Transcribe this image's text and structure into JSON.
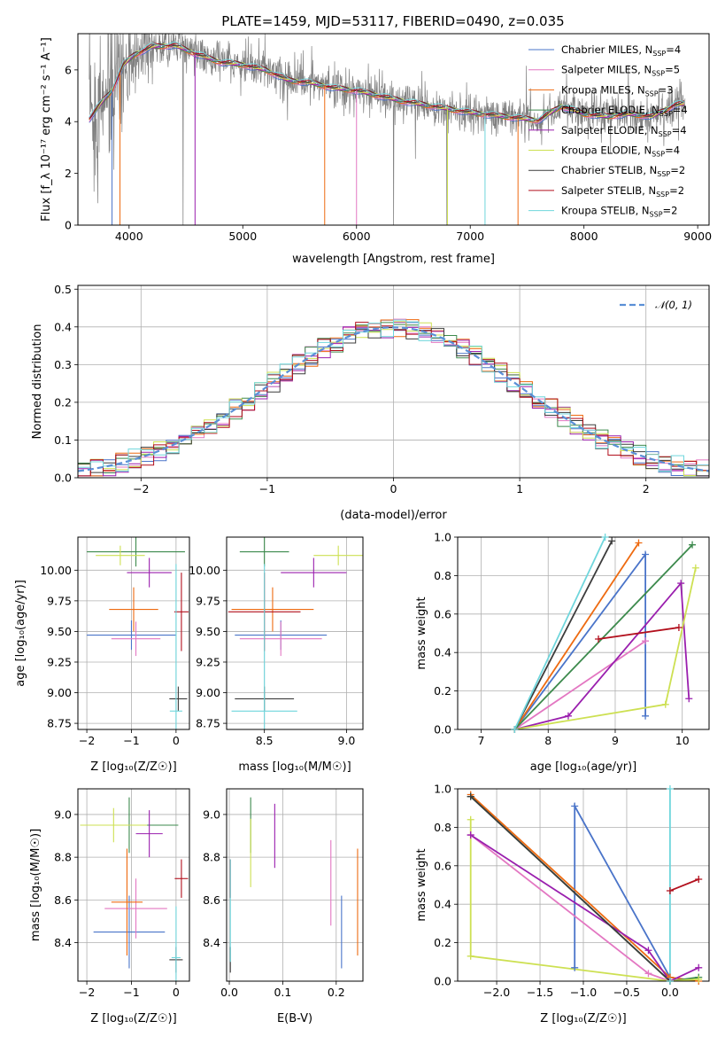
{
  "figure": {
    "title": "PLATE=1459, MJD=53117, FIBERID=0490, z=0.035",
    "series": [
      {
        "name": "Chabrier MILES",
        "nssp": 4,
        "color": "#4a74c9"
      },
      {
        "name": "Salpeter MILES",
        "nssp": 5,
        "color": "#e377c2"
      },
      {
        "name": "Kroupa MILES",
        "nssp": 3,
        "color": "#ee6a10"
      },
      {
        "name": "Chabrier ELODIE",
        "nssp": 4,
        "color": "#3d8a4d"
      },
      {
        "name": "Salpeter ELODIE",
        "nssp": 4,
        "color": "#9a1fae"
      },
      {
        "name": "Kroupa ELODIE",
        "nssp": 4,
        "color": "#cde052"
      },
      {
        "name": "Chabrier STELIB",
        "nssp": 2,
        "color": "#3c3c3c"
      },
      {
        "name": "Salpeter STELIB",
        "nssp": 2,
        "color": "#b20f1c"
      },
      {
        "name": "Kroupa STELIB",
        "nssp": 2,
        "color": "#6fd6dc"
      }
    ],
    "data_color": "#808080"
  },
  "chart_data": [
    {
      "id": "spectrum",
      "type": "line",
      "xlabel": "wavelength [Angstrom, rest frame]",
      "ylabel": "Flux [f_λ 10⁻¹⁷ erg cm⁻² s⁻¹ A⁻¹]",
      "xlim": [
        3550,
        9100
      ],
      "ylim": [
        0,
        7.4
      ],
      "xticks": [
        4000,
        5000,
        6000,
        7000,
        8000,
        9000
      ],
      "yticks": [
        0,
        2,
        4,
        6
      ],
      "grid": false,
      "legend": "top-right",
      "continuum": [
        [
          3650,
          4.1
        ],
        [
          3750,
          4.7
        ],
        [
          3850,
          5.2
        ],
        [
          3950,
          6.2
        ],
        [
          4050,
          6.6
        ],
        [
          4200,
          6.9
        ],
        [
          4400,
          6.95
        ],
        [
          4600,
          6.6
        ],
        [
          4800,
          6.3
        ],
        [
          5000,
          6.2
        ],
        [
          5200,
          6.0
        ],
        [
          5400,
          5.6
        ],
        [
          5600,
          5.5
        ],
        [
          5800,
          5.3
        ],
        [
          6000,
          5.2
        ],
        [
          6200,
          5.0
        ],
        [
          6400,
          4.8
        ],
        [
          6600,
          4.65
        ],
        [
          6800,
          4.5
        ],
        [
          7000,
          4.35
        ],
        [
          7200,
          4.25
        ],
        [
          7400,
          4.15
        ],
        [
          7600,
          4.05
        ],
        [
          7800,
          4.6
        ],
        [
          8000,
          4.3
        ],
        [
          8200,
          4.2
        ],
        [
          8400,
          4.3
        ],
        [
          8600,
          4.2
        ],
        [
          8800,
          4.65
        ],
        [
          8900,
          4.7
        ]
      ]
    },
    {
      "id": "residuals",
      "type": "line",
      "xlabel": "(data-model)/error",
      "ylabel": "Normed distribution",
      "xlim": [
        -2.5,
        2.5
      ],
      "ylim": [
        0,
        0.51
      ],
      "xticks": [
        -2,
        -1,
        0,
        1,
        2
      ],
      "yticks": [
        0.0,
        0.1,
        0.2,
        0.3,
        0.4,
        0.5
      ],
      "grid": true,
      "legend": "top-right",
      "reference_label": "𝒩(0, 1)",
      "reference_color": "#5a8fd6"
    },
    {
      "id": "age_vs_Z",
      "type": "scatter",
      "xlabel": "Z [log₁₀(Z/Z☉)]",
      "ylabel": "age  [log₁₀(age/yr)]",
      "xlim": [
        -2.2,
        0.3
      ],
      "ylim": [
        8.7,
        10.27
      ],
      "xticks": [
        -2,
        -1,
        0
      ],
      "yticks": [
        8.75,
        9.0,
        9.25,
        9.5,
        9.75,
        10.0
      ],
      "grid": true,
      "points": [
        {
          "s": 0,
          "x": -1.0,
          "y": 9.47,
          "xe": 1.0,
          "ye": 0.12
        },
        {
          "s": 1,
          "x": -0.9,
          "y": 9.44,
          "xe": 0.55,
          "ye": 0.14
        },
        {
          "s": 2,
          "x": -0.95,
          "y": 9.68,
          "xe": 0.55,
          "ye": 0.18
        },
        {
          "s": 3,
          "x": -0.9,
          "y": 10.15,
          "xe": 1.1,
          "ye": 0.12
        },
        {
          "s": 4,
          "x": -0.6,
          "y": 9.98,
          "xe": 0.5,
          "ye": 0.12
        },
        {
          "s": 5,
          "x": -1.25,
          "y": 10.12,
          "xe": 0.55,
          "ye": 0.08
        },
        {
          "s": 6,
          "x": 0.05,
          "y": 8.95,
          "xe": 0.2,
          "ye": 0.1
        },
        {
          "s": 7,
          "x": 0.12,
          "y": 9.66,
          "xe": 0.16,
          "ye": 0.32
        },
        {
          "s": 8,
          "x": 0.0,
          "y": 8.85,
          "xe": 0.14,
          "ye": 1.2
        }
      ]
    },
    {
      "id": "age_vs_mass",
      "type": "scatter",
      "xlabel": "mass [log₁₀(M/M☉)]",
      "xlim": [
        8.27,
        9.1
      ],
      "ylim": [
        8.7,
        10.27
      ],
      "xticks": [
        8.5,
        9.0
      ],
      "yticks": [
        8.75,
        9.0,
        9.25,
        9.5,
        9.75,
        10.0
      ],
      "grid": true,
      "points": [
        {
          "s": 0,
          "x": 8.6,
          "y": 9.47,
          "xe": 0.28,
          "ye": 0.12
        },
        {
          "s": 1,
          "x": 8.6,
          "y": 9.44,
          "xe": 0.25,
          "ye": 0.14
        },
        {
          "s": 2,
          "x": 8.55,
          "y": 9.68,
          "xe": 0.25,
          "ye": 0.18
        },
        {
          "s": 3,
          "x": 8.5,
          "y": 10.15,
          "xe": 0.15,
          "ye": 0.12
        },
        {
          "s": 4,
          "x": 8.8,
          "y": 9.98,
          "xe": 0.2,
          "ye": 0.12
        },
        {
          "s": 5,
          "x": 8.95,
          "y": 10.12,
          "xe": 0.15,
          "ye": 0.08
        },
        {
          "s": 6,
          "x": 8.5,
          "y": 8.95,
          "xe": 0.18,
          "ye": 0.1
        },
        {
          "s": 7,
          "x": 8.5,
          "y": 9.66,
          "xe": 0.22,
          "ye": 0.32
        },
        {
          "s": 8,
          "x": 8.5,
          "y": 8.85,
          "xe": 0.2,
          "ye": 1.2
        }
      ]
    },
    {
      "id": "weight_vs_age",
      "type": "line",
      "xlabel": "age  [log₁₀(age/yr)]",
      "ylabel": "mass weight",
      "xlim": [
        6.65,
        10.4
      ],
      "ylim": [
        0,
        1.0
      ],
      "xticks": [
        7,
        8,
        9,
        10
      ],
      "yticks": [
        0.0,
        0.2,
        0.4,
        0.6,
        0.8,
        1.0
      ],
      "grid": true,
      "lines": [
        {
          "s": 0,
          "pts": [
            [
              7.5,
              0.0
            ],
            [
              9.45,
              0.91
            ],
            [
              9.45,
              0.07
            ]
          ]
        },
        {
          "s": 1,
          "pts": [
            [
              7.5,
              0.0
            ],
            [
              9.45,
              0.46
            ]
          ]
        },
        {
          "s": 2,
          "pts": [
            [
              7.5,
              0.0
            ],
            [
              9.35,
              0.97
            ]
          ]
        },
        {
          "s": 3,
          "pts": [
            [
              7.5,
              0.0
            ],
            [
              10.15,
              0.96
            ]
          ]
        },
        {
          "s": 4,
          "pts": [
            [
              7.5,
              0.0
            ],
            [
              8.3,
              0.07
            ],
            [
              9.98,
              0.76
            ],
            [
              10.1,
              0.16
            ]
          ]
        },
        {
          "s": 5,
          "pts": [
            [
              7.5,
              0.0
            ],
            [
              9.75,
              0.13
            ],
            [
              10.2,
              0.84
            ]
          ]
        },
        {
          "s": 6,
          "pts": [
            [
              7.5,
              0.0
            ],
            [
              8.95,
              0.98
            ]
          ]
        },
        {
          "s": 7,
          "pts": [
            [
              8.75,
              0.47
            ],
            [
              9.95,
              0.53
            ]
          ]
        },
        {
          "s": 8,
          "pts": [
            [
              7.5,
              0.0
            ],
            [
              8.85,
              1.0
            ]
          ]
        }
      ]
    },
    {
      "id": "mass_vs_Z",
      "type": "scatter",
      "xlabel": "Z [log₁₀(Z/Z☉)]",
      "ylabel": "mass [log₁₀(M/M☉)]",
      "xlim": [
        -2.2,
        0.3
      ],
      "ylim": [
        8.22,
        9.12
      ],
      "xticks": [
        -2,
        -1,
        0
      ],
      "yticks": [
        8.4,
        8.6,
        8.8,
        9.0
      ],
      "grid": true,
      "points": [
        {
          "s": 0,
          "x": -1.05,
          "y": 8.45,
          "xe": 0.8,
          "ye": 0.17
        },
        {
          "s": 1,
          "x": -0.9,
          "y": 8.56,
          "xe": 0.7,
          "ye": 0.14
        },
        {
          "s": 2,
          "x": -1.1,
          "y": 8.59,
          "xe": 0.35,
          "ye": 0.25
        },
        {
          "s": 3,
          "x": -1.05,
          "y": 8.95,
          "xe": 1.1,
          "ye": 0.13
        },
        {
          "s": 4,
          "x": -0.6,
          "y": 8.91,
          "xe": 0.3,
          "ye": 0.11
        },
        {
          "s": 5,
          "x": -1.4,
          "y": 8.95,
          "xe": 0.75,
          "ye": 0.08
        },
        {
          "s": 6,
          "x": 0.0,
          "y": 8.32,
          "xe": 0.15,
          "ye": 0.06
        },
        {
          "s": 7,
          "x": 0.12,
          "y": 8.7,
          "xe": 0.15,
          "ye": 0.09
        },
        {
          "s": 8,
          "x": 0.0,
          "y": 8.33,
          "xe": 0.1,
          "ye": 0.24
        }
      ]
    },
    {
      "id": "mass_vs_ebv",
      "type": "scatter",
      "xlabel": "E(B-V)",
      "xlim": [
        -0.005,
        0.25
      ],
      "ylim": [
        8.22,
        9.12
      ],
      "xticks": [
        0.0,
        0.1,
        0.2
      ],
      "yticks": [
        8.4,
        8.6,
        8.8,
        9.0
      ],
      "grid": true,
      "points": [
        {
          "s": 0,
          "x": 0.21,
          "y": 8.45,
          "xe": 0,
          "ye": 0.17
        },
        {
          "s": 1,
          "x": 0.19,
          "y": 8.68,
          "xe": 0,
          "ye": 0.2
        },
        {
          "s": 2,
          "x": 0.24,
          "y": 8.59,
          "xe": 0,
          "ye": 0.25
        },
        {
          "s": 3,
          "x": 0.04,
          "y": 8.95,
          "xe": 0,
          "ye": 0.13
        },
        {
          "s": 4,
          "x": 0.085,
          "y": 8.9,
          "xe": 0,
          "ye": 0.15
        },
        {
          "s": 5,
          "x": 0.04,
          "y": 8.82,
          "xe": 0,
          "ye": 0.16
        },
        {
          "s": 6,
          "x": 0.002,
          "y": 8.32,
          "xe": 0,
          "ye": 0.06
        },
        {
          "s": 7,
          "x": 0.002,
          "y": 8.7,
          "xe": 0,
          "ye": 0.09
        },
        {
          "s": 8,
          "x": 0.002,
          "y": 8.55,
          "xe": 0,
          "ye": 0.24
        }
      ]
    },
    {
      "id": "weight_vs_Z",
      "type": "line",
      "xlabel": "Z [log₁₀(Z/Z☉)]",
      "ylabel": "mass weight",
      "xlim": [
        -2.45,
        0.45
      ],
      "ylim": [
        0,
        1.0
      ],
      "xticks": [
        -2.0,
        -1.5,
        -1.0,
        -0.5,
        0.0
      ],
      "yticks": [
        0.0,
        0.2,
        0.4,
        0.6,
        0.8,
        1.0
      ],
      "grid": true,
      "lines": [
        {
          "s": 0,
          "pts": [
            [
              -1.1,
              0.07
            ],
            [
              -1.1,
              0.91
            ],
            [
              0.0,
              0.02
            ]
          ]
        },
        {
          "s": 1,
          "pts": [
            [
              -2.3,
              0.76
            ],
            [
              -0.25,
              0.04
            ],
            [
              0.0,
              0.0
            ]
          ]
        },
        {
          "s": 2,
          "pts": [
            [
              -2.3,
              0.97
            ],
            [
              0.0,
              0.02
            ],
            [
              0.33,
              0.0
            ]
          ]
        },
        {
          "s": 3,
          "pts": [
            [
              -2.3,
              0.96
            ],
            [
              0.0,
              0.0
            ],
            [
              0.33,
              0.02
            ]
          ]
        },
        {
          "s": 4,
          "pts": [
            [
              -2.3,
              0.76
            ],
            [
              -0.25,
              0.16
            ],
            [
              0.0,
              0.0
            ],
            [
              0.33,
              0.07
            ]
          ]
        },
        {
          "s": 5,
          "pts": [
            [
              -2.3,
              0.84
            ],
            [
              -2.3,
              0.13
            ],
            [
              0.0,
              0.0
            ],
            [
              0.33,
              0.01
            ]
          ]
        },
        {
          "s": 6,
          "pts": [
            [
              -2.3,
              0.96
            ],
            [
              0.0,
              0.0
            ]
          ]
        },
        {
          "s": 7,
          "pts": [
            [
              0.0,
              0.47
            ],
            [
              0.33,
              0.53
            ]
          ]
        },
        {
          "s": 8,
          "pts": [
            [
              0.0,
              0.0
            ],
            [
              0.0,
              1.0
            ]
          ]
        }
      ]
    }
  ]
}
